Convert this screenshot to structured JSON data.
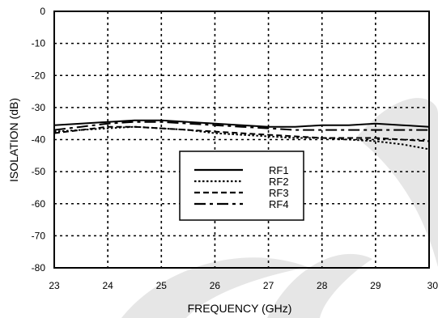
{
  "chart_data": {
    "type": "line",
    "title": "",
    "xlabel": "FREQUENCY (GHz)",
    "ylabel": "ISOLATION  (dB)",
    "xlim": [
      23,
      30
    ],
    "ylim": [
      -80,
      0
    ],
    "xticks": [
      23,
      24,
      25,
      26,
      27,
      28,
      29,
      30
    ],
    "yticks": [
      0,
      -10,
      -20,
      -30,
      -40,
      -50,
      -60,
      -70,
      -80
    ],
    "grid": true,
    "legend_position": "center",
    "x": [
      23,
      23.5,
      24,
      24.5,
      25,
      25.5,
      26,
      26.5,
      27,
      27.5,
      28,
      28.5,
      29,
      29.5,
      30
    ],
    "series": [
      {
        "name": "RF1",
        "style": "solid",
        "values": [
          -35.5,
          -35,
          -34.5,
          -34,
          -34,
          -34.5,
          -35,
          -35.5,
          -36,
          -36,
          -35.5,
          -35.5,
          -35,
          -35.5,
          -36
        ]
      },
      {
        "name": "RF2",
        "style": "dotted",
        "values": [
          -37.5,
          -37,
          -36.5,
          -36,
          -36.5,
          -37,
          -38,
          -38.5,
          -39,
          -39.5,
          -39.5,
          -40,
          -40.5,
          -41.5,
          -43
        ]
      },
      {
        "name": "RF3",
        "style": "dashed",
        "values": [
          -38,
          -37,
          -36,
          -36,
          -36.5,
          -37,
          -37.5,
          -38,
          -38.5,
          -39,
          -39.5,
          -39.5,
          -39.5,
          -40,
          -40.5
        ]
      },
      {
        "name": "RF4",
        "style": "longdash",
        "values": [
          -37,
          -36,
          -35,
          -34.5,
          -34.5,
          -35,
          -35.5,
          -36,
          -36.5,
          -37,
          -37,
          -37,
          -37,
          -37,
          -37
        ]
      }
    ]
  }
}
